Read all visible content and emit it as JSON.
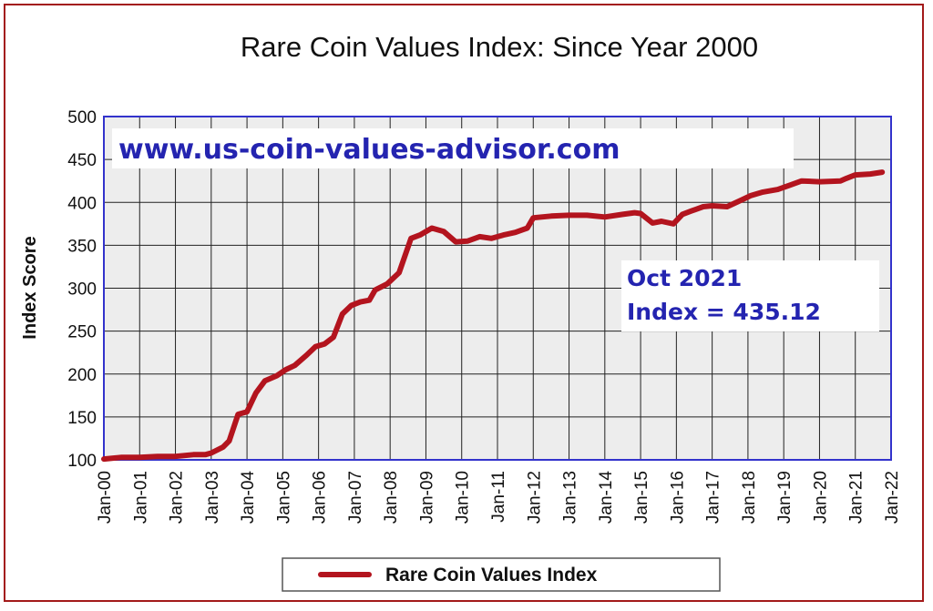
{
  "chart_data": {
    "type": "line",
    "title": "Rare Coin Values Index: Since Year 2000",
    "ylabel": "Index Score",
    "xlabel": "",
    "ylim": [
      100,
      500
    ],
    "yticks": [
      100,
      150,
      200,
      250,
      300,
      350,
      400,
      450,
      500
    ],
    "xticks": [
      "Jan-00",
      "Jan-01",
      "Jan-02",
      "Jan-03",
      "Jan-04",
      "Jan-05",
      "Jan-06",
      "Jan-07",
      "Jan-08",
      "Jan-09",
      "Jan-10",
      "Jan-11",
      "Jan-12",
      "Jan-13",
      "Jan-14",
      "Jan-15",
      "Jan-16",
      "Jan-17",
      "Jan-18",
      "Jan-19",
      "Jan-20",
      "Jan-21",
      "Jan-22"
    ],
    "grid": true,
    "legend_position": "bottom",
    "series_color": "#b3141e",
    "watermark": "www.us-coin-values-advisor.com",
    "annotation": {
      "line1": "Oct 2021",
      "line2": "Index = 435.12"
    },
    "series": [
      {
        "name": "Rare Coin Values Index",
        "x": [
          "2000-01",
          "2000-07",
          "2001-01",
          "2001-07",
          "2002-01",
          "2002-07",
          "2002-11",
          "2003-01",
          "2003-05",
          "2003-07",
          "2003-10",
          "2004-01",
          "2004-04",
          "2004-07",
          "2004-11",
          "2005-02",
          "2005-05",
          "2005-09",
          "2005-12",
          "2006-03",
          "2006-06",
          "2006-09",
          "2006-12",
          "2007-03",
          "2007-06",
          "2007-08",
          "2007-12",
          "2008-04",
          "2008-08",
          "2008-11",
          "2009-03",
          "2009-07",
          "2009-11",
          "2010-03",
          "2010-07",
          "2010-11",
          "2011-03",
          "2011-07",
          "2011-11",
          "2012-01",
          "2012-07",
          "2013-01",
          "2013-07",
          "2014-01",
          "2014-07",
          "2014-11",
          "2015-01",
          "2015-05",
          "2015-08",
          "2015-12",
          "2016-03",
          "2016-06",
          "2016-10",
          "2017-01",
          "2017-06",
          "2017-11",
          "2018-02",
          "2018-06",
          "2018-11",
          "2019-03",
          "2019-07",
          "2020-01",
          "2020-08",
          "2020-10",
          "2021-01",
          "2021-06",
          "2021-10"
        ],
        "values": [
          101,
          103,
          103,
          104,
          104,
          106,
          106,
          108,
          115,
          122,
          153,
          156,
          178,
          192,
          198,
          205,
          210,
          222,
          232,
          235,
          243,
          270,
          280,
          284,
          286,
          298,
          305,
          318,
          358,
          362,
          370,
          366,
          354,
          355,
          360,
          358,
          362,
          365,
          370,
          382,
          384,
          385,
          385,
          383,
          386,
          388,
          387,
          376,
          378,
          375,
          386,
          390,
          395,
          396,
          395,
          403,
          408,
          412,
          415,
          420,
          425,
          424,
          425,
          428,
          432,
          433,
          435.12
        ]
      }
    ]
  }
}
